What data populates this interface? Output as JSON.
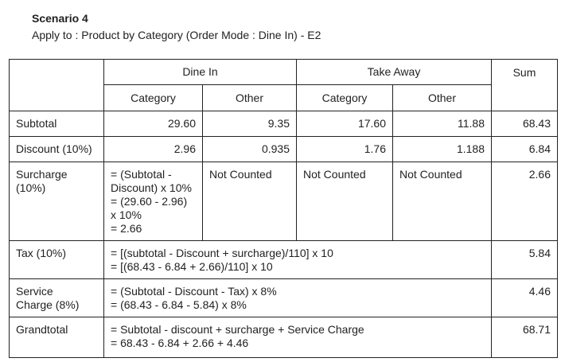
{
  "title": "Scenario 4",
  "subtitle": "Apply to : Product by Category (Order Mode : Dine In) - E2",
  "table": {
    "groups": [
      "Dine In",
      "Take Away"
    ],
    "sum_header": "Sum",
    "subheaders": [
      "Category",
      "Other",
      "Category",
      "Other"
    ],
    "subtotal": {
      "label": "Subtotal",
      "values": [
        "29.60",
        "9.35",
        "17.60",
        "11.88"
      ],
      "sum": "68.43"
    },
    "discount": {
      "label": "Discount (10%)",
      "values": [
        "2.96",
        "0.935",
        "1.76",
        "1.188"
      ],
      "sum": "6.84"
    },
    "surcharge": {
      "label": [
        "Surcharge",
        "(10%)"
      ],
      "formula": [
        "= (Subtotal -",
        "Discount) x 10%",
        "= (29.60 - 2.96)",
        "x 10%",
        "= 2.66"
      ],
      "others": [
        "Not Counted",
        "Not Counted",
        "Not Counted"
      ],
      "sum": "2.66"
    },
    "tax": {
      "label": "Tax (10%)",
      "formula": [
        "= [(subtotal - Discount + surcharge)/110] x 10",
        "= [(68.43 - 6.84 + 2.66)/110] x 10"
      ],
      "sum": "5.84"
    },
    "service": {
      "label": [
        "Service",
        "Charge (8%)"
      ],
      "formula": [
        "= (Subtotal - Discount - Tax) x 8%",
        "= (68.43 - 6.84 - 5.84) x 8%"
      ],
      "sum": "4.46"
    },
    "grandtotal": {
      "label": "Grandtotal",
      "formula": [
        "= Subtotal - discount + surcharge + Service Charge",
        "= 68.43 - 6.84 + 2.66 + 4.46"
      ],
      "sum": "68.71"
    }
  }
}
